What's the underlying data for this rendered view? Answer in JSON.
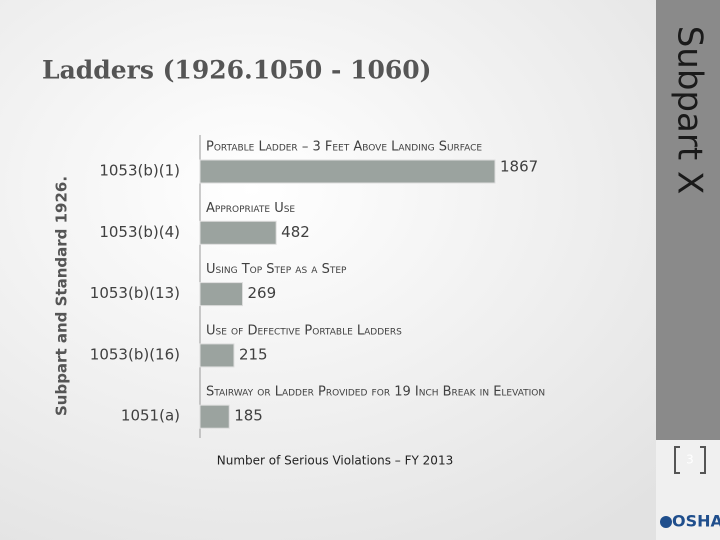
{
  "title": "Ladders (1926.1050 - 1060)",
  "side_label": "Subpart X",
  "page_number": "3",
  "logo": "OSHA",
  "chart_data": {
    "type": "bar",
    "orientation": "horizontal",
    "y_label": "Subpart and Standard 1926.",
    "x_label": "Number of Serious Violations – FY 2013",
    "categories": [
      "1053(b)(1)",
      "1053(b)(4)",
      "1053(b)(13)",
      "1053(b)(16)",
      "1051(a)"
    ],
    "descriptions": [
      "Portable Ladder – 3 Feet Above Landing Surface",
      "Appropriate Use",
      "Using Top Step as a Step",
      "Use of Defective Portable Ladders",
      "Stairway or Ladder Provided for 19 Inch Break in Elevation"
    ],
    "values": [
      1867,
      482,
      269,
      215,
      185
    ],
    "color": "#9ba39f"
  }
}
